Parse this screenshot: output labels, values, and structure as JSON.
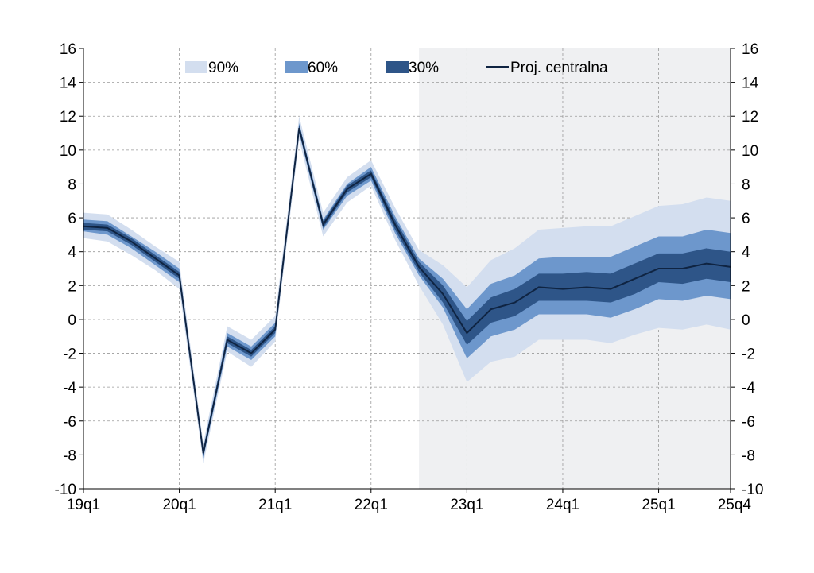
{
  "chart_data": {
    "type": "fan",
    "title": "",
    "xlabel": "",
    "ylabel": "",
    "ylim": [
      -10,
      16
    ],
    "yticks": [
      -10,
      -8,
      -6,
      -4,
      -2,
      0,
      2,
      4,
      6,
      8,
      10,
      12,
      14,
      16
    ],
    "ytick_labels": [
      "-10",
      "-8",
      "-6",
      "-4",
      "-2",
      "0",
      "2",
      "4",
      "6",
      "8",
      "10",
      "12",
      "14",
      "16"
    ],
    "x_tick_labels": [
      {
        "label": "19q1",
        "index": 0
      },
      {
        "label": "20q1",
        "index": 4
      },
      {
        "label": "21q1",
        "index": 8
      },
      {
        "label": "22q1",
        "index": 12
      },
      {
        "label": "23q1",
        "index": 16
      },
      {
        "label": "24q1",
        "index": 20
      },
      {
        "label": "25q1",
        "index": 24
      },
      {
        "label": "25q4",
        "index": 27
      }
    ],
    "n_quarters": 28,
    "projection_start_index": 14,
    "grid": true,
    "legend": {
      "placement": "top",
      "items": [
        {
          "key": "b90",
          "label": "90%",
          "color": "#d3deef"
        },
        {
          "key": "b60",
          "label": "60%",
          "color": "#6d97cc"
        },
        {
          "key": "b30",
          "label": "30%",
          "color": "#2e5588"
        },
        {
          "key": "central",
          "label": "Proj. centralna",
          "color": "#0f2442"
        }
      ]
    },
    "colors": {
      "shade": "#eff0f2",
      "grid": "#9a9a9a",
      "axis": "#000000"
    },
    "central": [
      5.5,
      5.4,
      4.6,
      3.6,
      2.6,
      -7.9,
      -1.2,
      -2.0,
      -0.6,
      11.3,
      5.6,
      7.7,
      8.6,
      5.6,
      3.1,
      1.5,
      -0.8,
      0.6,
      1.0,
      1.9,
      1.8,
      1.9,
      1.8,
      2.4,
      3.0,
      3.0,
      3.3,
      3.1
    ],
    "bands": {
      "b90": {
        "upper": [
          6.3,
          6.2,
          5.3,
          4.3,
          3.4,
          -7.3,
          -0.4,
          -1.2,
          0.2,
          12.0,
          6.3,
          8.4,
          9.4,
          6.6,
          4.1,
          3.2,
          1.9,
          3.5,
          4.2,
          5.3,
          5.4,
          5.5,
          5.5,
          6.1,
          6.7,
          6.8,
          7.2,
          7.0
        ],
        "lower": [
          4.8,
          4.6,
          3.8,
          2.9,
          1.8,
          -8.5,
          -1.9,
          -2.8,
          -1.3,
          10.6,
          4.9,
          6.9,
          7.9,
          4.7,
          2.0,
          -0.3,
          -3.7,
          -2.5,
          -2.2,
          -1.2,
          -1.2,
          -1.2,
          -1.4,
          -0.9,
          -0.5,
          -0.6,
          -0.3,
          -0.6
        ]
      },
      "b60": {
        "upper": [
          5.9,
          5.8,
          4.9,
          4.0,
          3.0,
          -7.6,
          -0.8,
          -1.6,
          -0.2,
          11.6,
          5.9,
          8.0,
          9.0,
          6.1,
          3.6,
          2.4,
          0.6,
          2.1,
          2.6,
          3.6,
          3.7,
          3.7,
          3.7,
          4.3,
          4.9,
          4.9,
          5.3,
          5.1
        ],
        "lower": [
          5.2,
          5.0,
          4.2,
          3.2,
          2.2,
          -8.2,
          -1.6,
          -2.4,
          -1.0,
          11.0,
          5.3,
          7.3,
          8.2,
          5.1,
          2.6,
          0.7,
          -2.3,
          -1.0,
          -0.6,
          0.3,
          0.3,
          0.3,
          0.1,
          0.6,
          1.2,
          1.1,
          1.4,
          1.2
        ]
      },
      "b30": {
        "upper": [
          5.7,
          5.6,
          4.8,
          3.8,
          2.8,
          -7.7,
          -1.0,
          -1.8,
          -0.4,
          11.5,
          5.8,
          7.9,
          8.8,
          5.9,
          3.4,
          2.0,
          -0.1,
          1.3,
          1.8,
          2.7,
          2.7,
          2.8,
          2.7,
          3.3,
          3.9,
          3.9,
          4.2,
          4.0
        ],
        "lower": [
          5.3,
          5.2,
          4.4,
          3.4,
          2.4,
          -8.1,
          -1.4,
          -2.2,
          -0.8,
          11.1,
          5.4,
          7.5,
          8.4,
          5.3,
          2.8,
          1.0,
          -1.5,
          -0.2,
          0.2,
          1.1,
          1.1,
          1.1,
          1.0,
          1.5,
          2.2,
          2.1,
          2.4,
          2.2
        ]
      }
    }
  }
}
